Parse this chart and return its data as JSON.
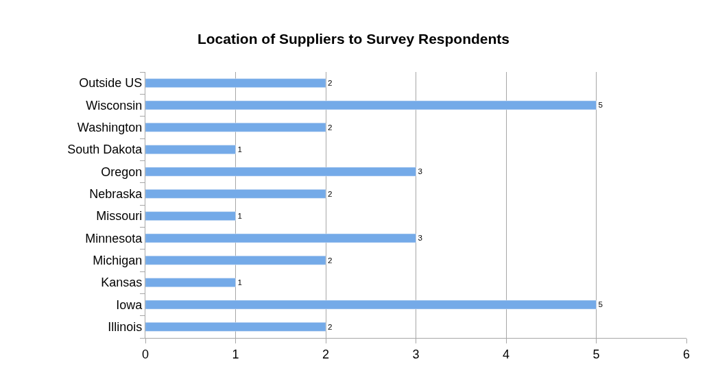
{
  "chart_data": {
    "type": "bar",
    "orientation": "horizontal",
    "title": "Location of Suppliers to Survey Respondents",
    "categories": [
      "Outside US",
      "Wisconsin",
      "Washington",
      "South Dakota",
      "Oregon",
      "Nebraska",
      "Missouri",
      "Minnesota",
      "Michigan",
      "Kansas",
      "Iowa",
      "Illinois"
    ],
    "values": [
      2,
      5,
      2,
      1,
      3,
      2,
      1,
      3,
      2,
      1,
      5,
      2
    ],
    "color": "#74aae8",
    "xlim": [
      0,
      6
    ],
    "xticks": [
      0,
      1,
      2,
      3,
      4,
      5,
      6
    ],
    "grid": "x",
    "data_labels": true,
    "legend": false
  }
}
